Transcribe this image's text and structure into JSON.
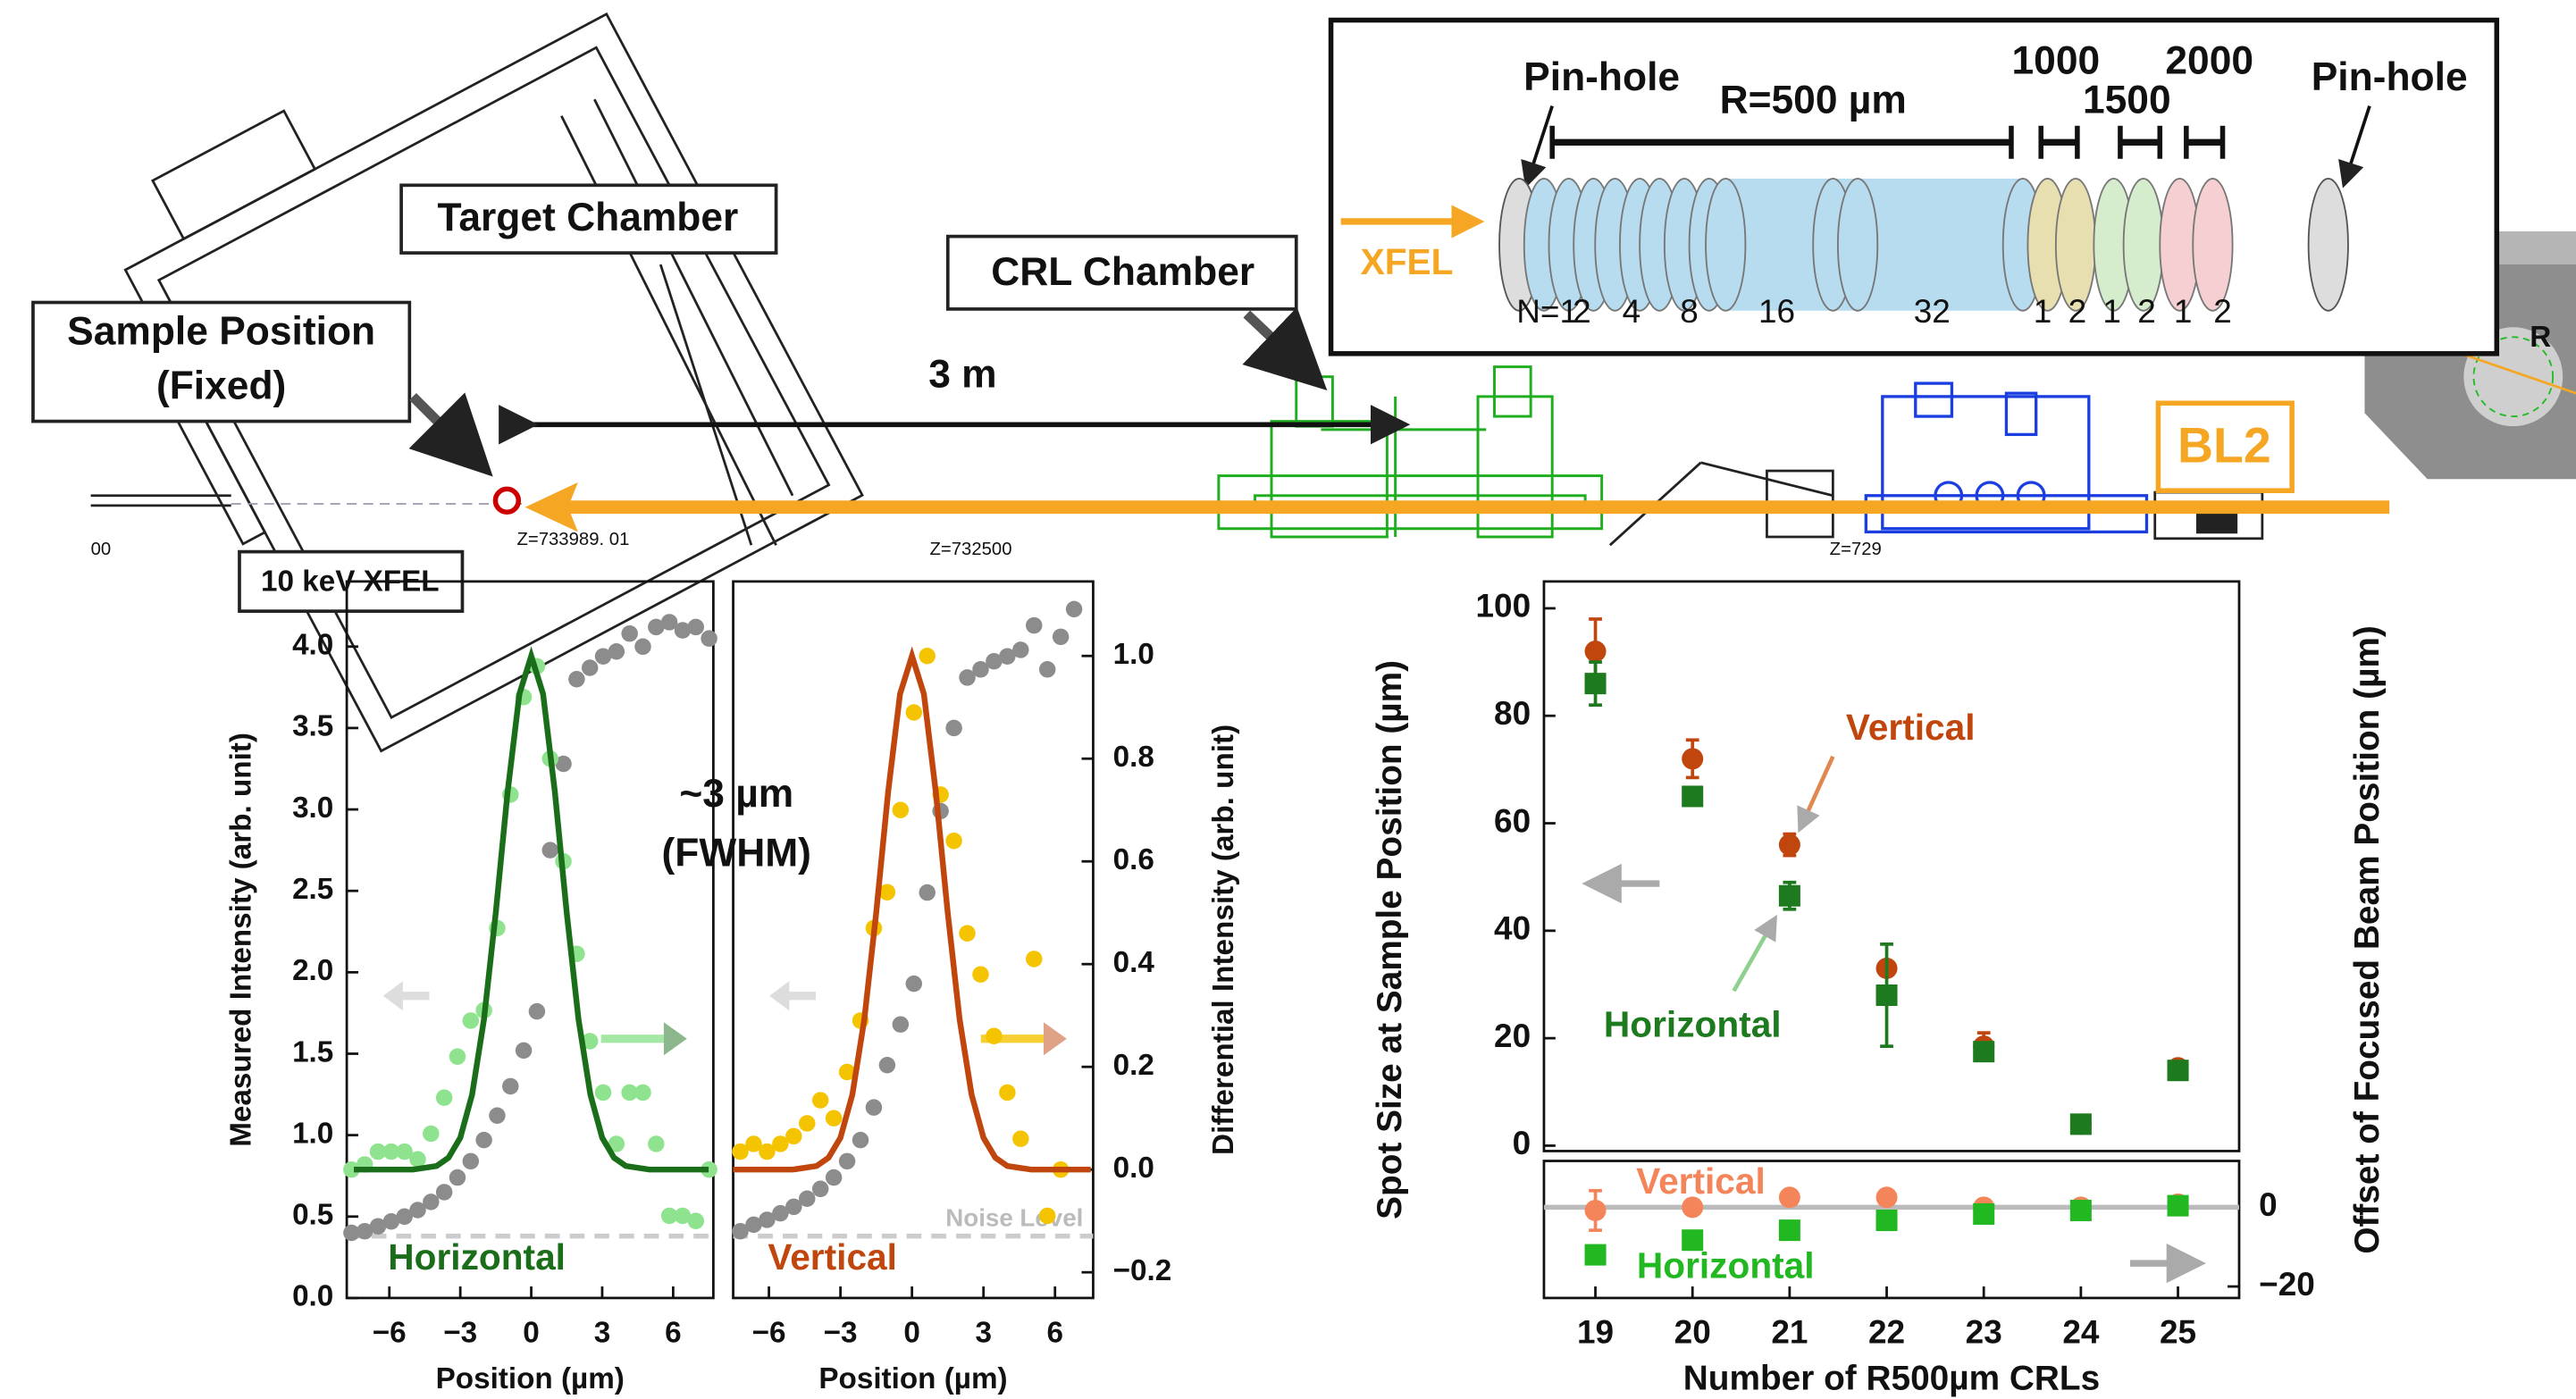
{
  "diagram": {
    "target_chamber": "Target Chamber",
    "sample_position": [
      "Sample Position",
      "(Fixed)"
    ],
    "crl_chamber": "CRL Chamber",
    "distance": "3 m",
    "z_labels": [
      "00",
      "Z=733989. 01",
      "Z=732500",
      "Z=729"
    ],
    "beamline": "BL2",
    "source": "10 keV XFEL",
    "lens_label": "R",
    "fwhm": [
      "~3 µm",
      "(FWHM)"
    ],
    "inset": {
      "pinhole_left": "Pin-hole",
      "pinhole_right": "Pin-hole",
      "radius": "R=500 µm",
      "radii": [
        "1000",
        "1500",
        "2000"
      ],
      "beam": "XFEL",
      "counts": [
        "N=1",
        "2",
        "4",
        "8",
        "16",
        "32",
        "1",
        "2",
        "1",
        "2",
        "1",
        "2"
      ]
    }
  },
  "chart_data": [
    {
      "type": "scatter",
      "x_label": "Position (µm)",
      "y_label": "Measured Intensity (arb. unit)",
      "annotation": "Horizontal",
      "xlim": [
        -7.8,
        7.7
      ],
      "xticks": [
        {
          "value": -6,
          "label": "−6"
        },
        {
          "value": -3,
          "label": "−3"
        },
        0,
        3,
        6
      ],
      "ylim": [
        0,
        4.4
      ],
      "yticks": [
        {
          "value": 0,
          "label": "0.0"
        },
        0.5,
        {
          "value": 1,
          "label": "1.0"
        },
        1.5,
        {
          "value": 2,
          "label": "2.0"
        },
        2.5,
        {
          "value": 3,
          "label": "3.0"
        },
        3.5,
        {
          "value": 4,
          "label": "4.0"
        }
      ],
      "y2lim": [
        -0.25,
        1.145
      ],
      "noise_level": {
        "value": 0.38
      },
      "annotation_color": "#1a6e1a",
      "series": [
        {
          "color": "#8c8c8c",
          "mode": "markers",
          "x": [
            -7.6,
            -7.04,
            -6.48,
            -5.92,
            -5.36,
            -4.8,
            -4.24,
            -3.68,
            -3.12,
            -2.56,
            -2.0,
            -1.44,
            -0.88,
            -0.32,
            0.24,
            0.8,
            1.36,
            1.92,
            2.48,
            3.04,
            3.6,
            4.16,
            4.72,
            5.28,
            5.84,
            6.4,
            6.96,
            7.52
          ],
          "values": [
            0.4,
            0.41,
            0.44,
            0.47,
            0.5,
            0.54,
            0.59,
            0.65,
            0.74,
            0.84,
            0.97,
            1.12,
            1.3,
            1.52,
            1.76,
            2.75,
            3.28,
            3.8,
            3.87,
            3.94,
            3.97,
            4.08,
            4.0,
            4.12,
            4.15,
            4.1,
            4.12,
            4.05
          ]
        },
        {
          "color": "#8fe38f",
          "mode": "markers",
          "axis": "y2",
          "x": [
            -7.6,
            -7.04,
            -6.48,
            -5.92,
            -5.36,
            -4.8,
            -4.24,
            -3.68,
            -3.12,
            -2.56,
            -2.0,
            -1.44,
            -0.88,
            -0.32,
            0.24,
            0.8,
            1.36,
            1.92,
            2.48,
            3.04,
            3.6,
            4.16,
            4.72,
            5.28,
            5.84,
            6.4,
            6.96,
            7.52
          ],
          "values": [
            0.0,
            0.01,
            0.035,
            0.035,
            0.035,
            0.02,
            0.07,
            0.14,
            0.22,
            0.29,
            0.31,
            0.47,
            0.73,
            0.92,
            0.98,
            0.8,
            0.6,
            0.42,
            0.25,
            0.15,
            0.05,
            0.15,
            0.15,
            0.05,
            -0.09,
            -0.09,
            -0.1,
            0.0
          ]
        },
        {
          "color": "#1a6e1a",
          "mode": "line",
          "axis": "y2",
          "x": [
            -7.5,
            -6,
            -5,
            -4,
            -3.5,
            -3,
            -2.5,
            -2,
            -1.5,
            -1,
            -0.5,
            0,
            0.5,
            1,
            1.5,
            2,
            2.5,
            3,
            3.5,
            4,
            5,
            6,
            7.5
          ],
          "values": [
            0,
            0,
            0,
            0.007,
            0.023,
            0.062,
            0.146,
            0.292,
            0.5,
            0.735,
            0.926,
            1.0,
            0.926,
            0.735,
            0.5,
            0.292,
            0.146,
            0.062,
            0.023,
            0.007,
            0,
            0,
            0
          ]
        }
      ]
    },
    {
      "type": "scatter",
      "x_label": "Position (µm)",
      "y2_label": "Differential Intensity (arb. unit)",
      "annotation": "Vertical",
      "xlim": [
        -7.5,
        7.6
      ],
      "xticks": [
        {
          "value": -6,
          "label": "−6"
        },
        {
          "value": -3,
          "label": "−3"
        },
        0,
        3,
        6
      ],
      "ylim": [
        0,
        4.4
      ],
      "y2lim": [
        -0.25,
        1.145
      ],
      "y2ticks": [
        {
          "value": -0.2,
          "label": "−0.2"
        },
        {
          "value": 0,
          "label": "0.0"
        },
        0.2,
        0.4,
        0.6,
        0.8,
        {
          "value": 1,
          "label": "1.0"
        }
      ],
      "noise_level": {
        "value": 0.38,
        "label": "Noise Level"
      },
      "annotation_color": "#c0460e",
      "series": [
        {
          "color": "#8c8c8c",
          "mode": "markers",
          "x": [
            -7.2,
            -6.64,
            -6.08,
            -5.52,
            -4.96,
            -4.4,
            -3.84,
            -3.28,
            -2.72,
            -2.16,
            -1.6,
            -1.04,
            -0.48,
            0.08,
            0.64,
            1.2,
            1.76,
            2.32,
            2.88,
            3.44,
            4.0,
            4.56,
            5.12,
            5.68,
            6.24,
            6.8
          ],
          "values": [
            0.41,
            0.45,
            0.48,
            0.52,
            0.56,
            0.61,
            0.67,
            0.74,
            0.84,
            0.97,
            1.17,
            1.43,
            1.68,
            1.93,
            2.49,
            2.99,
            3.5,
            3.81,
            3.86,
            3.91,
            3.94,
            3.98,
            4.13,
            3.86,
            4.06,
            4.23
          ]
        },
        {
          "color": "#f5c400",
          "mode": "markers",
          "axis": "y2",
          "x": [
            -7.2,
            -6.64,
            -6.08,
            -5.52,
            -4.96,
            -4.4,
            -3.84,
            -3.28,
            -2.72,
            -2.16,
            -1.6,
            -1.04,
            -0.48,
            0.08,
            0.64,
            1.2,
            1.76,
            2.32,
            2.88,
            3.44,
            4.0,
            4.56,
            5.12,
            5.68,
            6.24
          ],
          "values": [
            0.035,
            0.05,
            0.035,
            0.05,
            0.065,
            0.09,
            0.135,
            0.1,
            0.19,
            0.29,
            0.47,
            0.54,
            0.7,
            0.89,
            1.0,
            0.73,
            0.64,
            0.46,
            0.38,
            0.26,
            0.15,
            0.06,
            0.41,
            -0.09,
            0.0
          ]
        },
        {
          "color": "#c0460e",
          "mode": "line",
          "axis": "y2",
          "x": [
            -7.5,
            -6,
            -5,
            -4,
            -3.5,
            -3,
            -2.5,
            -2,
            -1.5,
            -1,
            -0.5,
            0,
            0.5,
            1,
            1.5,
            2,
            2.5,
            3,
            3.5,
            4,
            5,
            6,
            7.5
          ],
          "values": [
            0,
            0,
            0,
            0.007,
            0.023,
            0.062,
            0.146,
            0.292,
            0.5,
            0.735,
            0.926,
            1.0,
            0.926,
            0.735,
            0.5,
            0.292,
            0.146,
            0.062,
            0.023,
            0.007,
            0,
            0,
            0
          ]
        }
      ]
    },
    {
      "type": "scatter",
      "x_label": "Number of R500µm CRLs",
      "y_label": "Spot Size at Sample Position (µm)",
      "y2_label": "Offset of Focused Beam Position (µm)",
      "xlim": [
        18.47,
        25.63
      ],
      "xticks": [
        19,
        20,
        21,
        22,
        23,
        24,
        25
      ],
      "ylim": [
        -1,
        105
      ],
      "yticks": [
        0,
        20,
        40,
        60,
        80,
        100
      ],
      "y2lim": [
        -22.9,
        11.7
      ],
      "y2ticks": [
        0,
        {
          "value": -20,
          "label": "−20"
        }
      ],
      "zero_line": true,
      "series": [
        {
          "name": "Vertical",
          "color": "#c0460e",
          "mode": "markers",
          "marker": "circle",
          "x": [
            19,
            20,
            21,
            22,
            23,
            24,
            25
          ],
          "values": [
            92,
            72,
            56,
            33,
            18.5,
            4,
            14.5
          ],
          "errors": [
            6,
            3.5,
            2,
            0,
            2.5,
            0,
            0
          ]
        },
        {
          "name": "Horizontal",
          "color": "#1e7a1e",
          "mode": "markers",
          "marker": "square",
          "x": [
            19,
            20,
            21,
            22,
            23,
            24,
            25
          ],
          "values": [
            86,
            65,
            46.5,
            28,
            17.5,
            4,
            14
          ],
          "errors": [
            4,
            1.5,
            2.5,
            9.5,
            0,
            0,
            0
          ]
        },
        {
          "name": "Vertical",
          "color": "#f4855a",
          "mode": "markers",
          "marker": "circle",
          "axis": "y2",
          "x": [
            19,
            20,
            21,
            22,
            23,
            24,
            25
          ],
          "values": [
            -0.8,
            0,
            2.5,
            2.5,
            0,
            0,
            0.8
          ],
          "errors": [
            5,
            0,
            0,
            0,
            0,
            0,
            0
          ]
        },
        {
          "name": "Horizontal",
          "color": "#22b822",
          "mode": "markers",
          "marker": "square",
          "axis": "y2",
          "x": [
            19,
            20,
            21,
            22,
            23,
            24,
            25
          ],
          "values": [
            -12,
            -8.3,
            -5.8,
            -3.3,
            -1.7,
            -0.8,
            0.4
          ]
        }
      ]
    }
  ]
}
